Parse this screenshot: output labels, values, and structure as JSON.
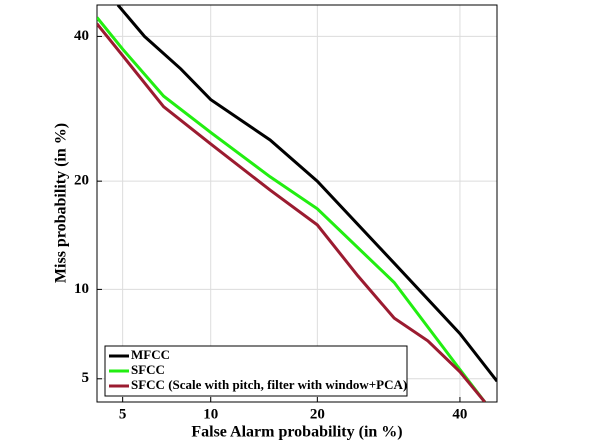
{
  "chart_data": {
    "type": "line",
    "scale": "probit",
    "x_label": "False Alarm probability (in %)",
    "y_label": "Miss probability (in %)",
    "xlim": [
      4,
      46
    ],
    "ylim": [
      4.1,
      45
    ],
    "xticks": [
      5,
      10,
      20,
      40
    ],
    "yticks": [
      5,
      10,
      20,
      40
    ],
    "grid": true,
    "legend": "lower left",
    "series": [
      {
        "name": "MFCC",
        "color": "#000000",
        "x": [
          4.8,
          6,
          8,
          10,
          15,
          20,
          30,
          40,
          46
        ],
        "values": [
          45,
          40,
          35,
          30.5,
          25,
          20,
          12,
          7.2,
          4.9
        ]
      },
      {
        "name": "SFCC",
        "color": "#22ee11",
        "x": [
          4,
          5,
          7,
          10,
          15,
          20,
          30,
          40,
          44
        ],
        "values": [
          43,
          38,
          31,
          26,
          20.5,
          17,
          10.5,
          5.4,
          4.1
        ]
      },
      {
        "name": "SFCC (Scale with pitch, filter with window+PCA)",
        "color": "#9b1b30",
        "x": [
          4,
          5,
          7,
          10,
          15,
          20,
          25,
          30,
          35,
          40,
          44
        ],
        "values": [
          42,
          37,
          29.5,
          24.5,
          19,
          15.4,
          11,
          8.1,
          6.8,
          5.3,
          4.1
        ]
      }
    ]
  }
}
